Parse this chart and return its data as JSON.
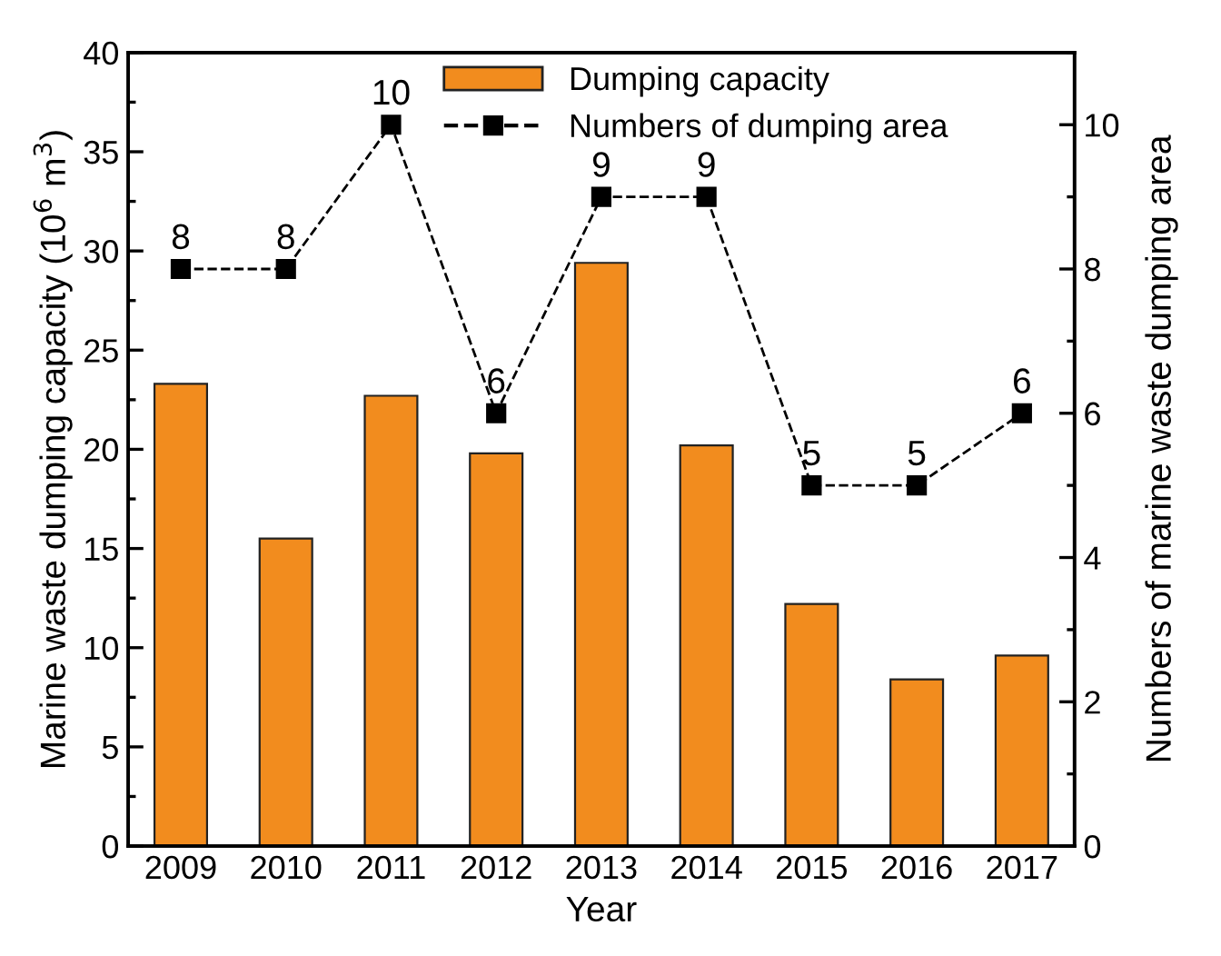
{
  "chart_data": {
    "type": "bar",
    "xlabel": "Year",
    "ylabel": "Marine waste dumping capacity (10$^{6}$ m$^{3}$)",
    "y2label": "Numbers of marine waste dumping area",
    "categories": [
      "2009",
      "2010",
      "2011",
      "2012",
      "2013",
      "2014",
      "2015",
      "2016",
      "2017"
    ],
    "series": [
      {
        "name": "Dumping capacity",
        "color": "#f28c1e",
        "values": [
          23.3,
          15.5,
          22.7,
          19.8,
          29.4,
          20.2,
          12.2,
          8.4,
          9.6
        ]
      },
      {
        "name": "Numbers of dumping area",
        "type": "line",
        "axis": "y2",
        "color": "#000000",
        "line_style": "dashed",
        "marker": "square",
        "data_labels": true,
        "values": [
          8,
          8,
          10,
          6,
          9,
          9,
          5,
          5,
          6
        ]
      }
    ],
    "ylim": [
      0,
      40
    ],
    "yticks": [
      0,
      5,
      10,
      15,
      20,
      25,
      30,
      35,
      40
    ],
    "y2lim": [
      0,
      11
    ],
    "y2ticks": [
      0,
      2,
      4,
      6,
      8,
      10
    ],
    "legend": "top",
    "grid": false
  }
}
